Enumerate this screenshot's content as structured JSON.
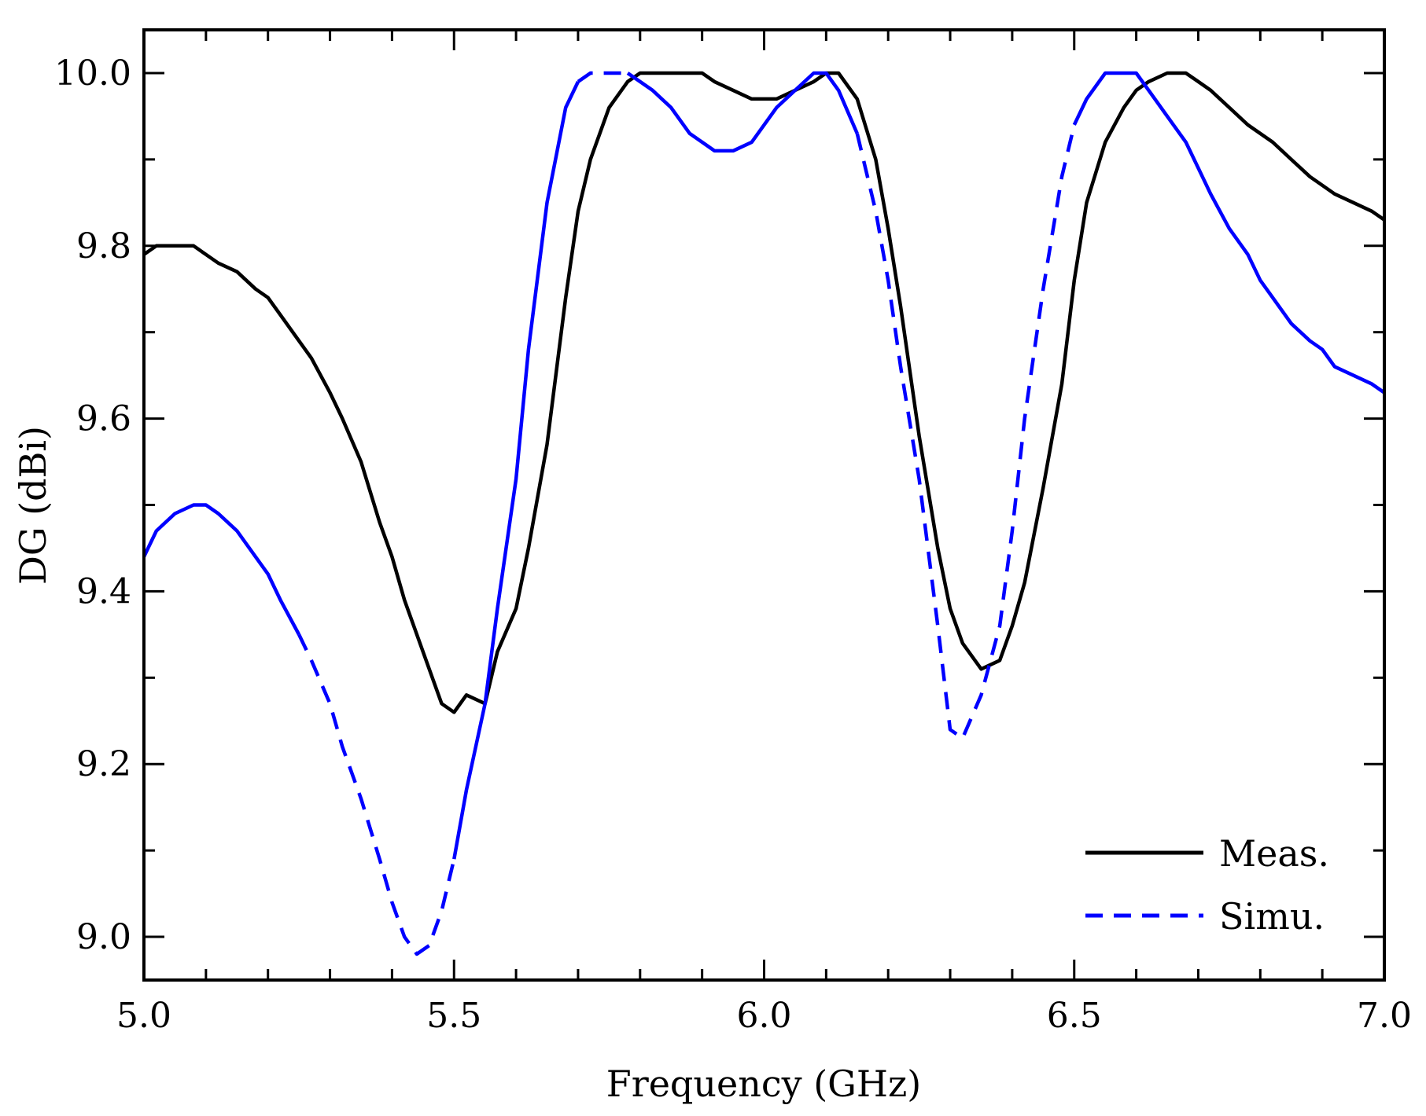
{
  "chart_data": {
    "type": "line",
    "title": "",
    "xlabel": "Frequency (GHz)",
    "ylabel": "DG (dBi)",
    "xlim": [
      5.0,
      7.0
    ],
    "ylim": [
      8.95,
      10.05
    ],
    "xticks": [
      5.0,
      5.5,
      6.0,
      6.5,
      7.0
    ],
    "xtick_labels": [
      "5.0",
      "5.5",
      "6.0",
      "6.5",
      "7.0"
    ],
    "xminor_step": 0.1,
    "yticks": [
      9.0,
      9.2,
      9.4,
      9.6,
      9.8,
      10.0
    ],
    "ytick_labels": [
      "9.0",
      "9.2",
      "9.4",
      "9.6",
      "9.8",
      "10.0"
    ],
    "yminor_step": 0.1,
    "grid": false,
    "legend_position": "bottom-right",
    "series": [
      {
        "name": "Meas.",
        "color": "#000000",
        "style": "solid",
        "x": [
          5.0,
          5.02,
          5.05,
          5.08,
          5.1,
          5.12,
          5.15,
          5.18,
          5.2,
          5.22,
          5.25,
          5.27,
          5.3,
          5.32,
          5.35,
          5.38,
          5.4,
          5.42,
          5.45,
          5.48,
          5.5,
          5.52,
          5.55,
          5.57,
          5.6,
          5.62,
          5.65,
          5.68,
          5.7,
          5.72,
          5.75,
          5.78,
          5.8,
          5.82,
          5.85,
          5.88,
          5.9,
          5.92,
          5.95,
          5.98,
          6.0,
          6.02,
          6.05,
          6.08,
          6.1,
          6.12,
          6.15,
          6.18,
          6.2,
          6.22,
          6.25,
          6.28,
          6.3,
          6.32,
          6.35,
          6.38,
          6.4,
          6.42,
          6.45,
          6.48,
          6.5,
          6.52,
          6.55,
          6.58,
          6.6,
          6.62,
          6.65,
          6.68,
          6.7,
          6.72,
          6.75,
          6.78,
          6.8,
          6.82,
          6.85,
          6.88,
          6.9,
          6.92,
          6.95,
          6.98,
          7.0
        ],
        "y": [
          9.79,
          9.8,
          9.8,
          9.8,
          9.79,
          9.78,
          9.77,
          9.75,
          9.74,
          9.72,
          9.69,
          9.67,
          9.63,
          9.6,
          9.55,
          9.48,
          9.44,
          9.39,
          9.33,
          9.27,
          9.26,
          9.28,
          9.27,
          9.33,
          9.38,
          9.45,
          9.57,
          9.74,
          9.84,
          9.9,
          9.96,
          9.99,
          10.0,
          10.0,
          10.0,
          10.0,
          10.0,
          9.99,
          9.98,
          9.97,
          9.97,
          9.97,
          9.98,
          9.99,
          10.0,
          10.0,
          9.97,
          9.9,
          9.82,
          9.73,
          9.58,
          9.45,
          9.38,
          9.34,
          9.31,
          9.32,
          9.36,
          9.41,
          9.52,
          9.64,
          9.76,
          9.85,
          9.92,
          9.96,
          9.98,
          9.99,
          10.0,
          10.0,
          9.99,
          9.98,
          9.96,
          9.94,
          9.93,
          9.92,
          9.9,
          9.88,
          9.87,
          9.86,
          9.85,
          9.84,
          9.83
        ]
      },
      {
        "name": "Simu.",
        "color": "#0000ff",
        "style": "dashed-mid",
        "x": [
          5.0,
          5.02,
          5.05,
          5.08,
          5.1,
          5.12,
          5.15,
          5.18,
          5.2,
          5.22,
          5.25,
          5.27,
          5.3,
          5.32,
          5.35,
          5.38,
          5.4,
          5.42,
          5.44,
          5.46,
          5.48,
          5.5,
          5.52,
          5.55,
          5.57,
          5.6,
          5.62,
          5.65,
          5.68,
          5.7,
          5.72,
          5.75,
          5.78,
          5.8,
          5.82,
          5.85,
          5.88,
          5.9,
          5.92,
          5.95,
          5.98,
          6.0,
          6.02,
          6.05,
          6.08,
          6.1,
          6.12,
          6.15,
          6.18,
          6.2,
          6.22,
          6.25,
          6.28,
          6.3,
          6.32,
          6.35,
          6.38,
          6.4,
          6.42,
          6.45,
          6.48,
          6.5,
          6.52,
          6.55,
          6.58,
          6.6,
          6.62,
          6.65,
          6.68,
          6.7,
          6.72,
          6.75,
          6.78,
          6.8,
          6.82,
          6.85,
          6.88,
          6.9,
          6.92,
          6.95,
          6.98,
          7.0
        ],
        "y": [
          9.44,
          9.47,
          9.49,
          9.5,
          9.5,
          9.49,
          9.47,
          9.44,
          9.42,
          9.39,
          9.35,
          9.32,
          9.27,
          9.22,
          9.16,
          9.09,
          9.04,
          9.0,
          8.98,
          8.99,
          9.03,
          9.09,
          9.17,
          9.27,
          9.38,
          9.53,
          9.68,
          9.85,
          9.96,
          9.99,
          10.0,
          10.0,
          10.0,
          9.99,
          9.98,
          9.96,
          9.93,
          9.92,
          9.91,
          9.91,
          9.92,
          9.94,
          9.96,
          9.98,
          10.0,
          10.0,
          9.98,
          9.93,
          9.84,
          9.76,
          9.66,
          9.53,
          9.36,
          9.24,
          9.23,
          9.28,
          9.36,
          9.47,
          9.6,
          9.75,
          9.88,
          9.94,
          9.97,
          10.0,
          10.0,
          10.0,
          9.98,
          9.95,
          9.92,
          9.89,
          9.86,
          9.82,
          9.79,
          9.76,
          9.74,
          9.71,
          9.69,
          9.68,
          9.66,
          9.65,
          9.64,
          9.63
        ],
        "dashed_ranges": [
          [
            5.25,
            5.49
          ],
          [
            5.69,
            5.77
          ],
          [
            6.15,
            6.34
          ],
          [
            6.35,
            6.49
          ]
        ]
      }
    ]
  }
}
